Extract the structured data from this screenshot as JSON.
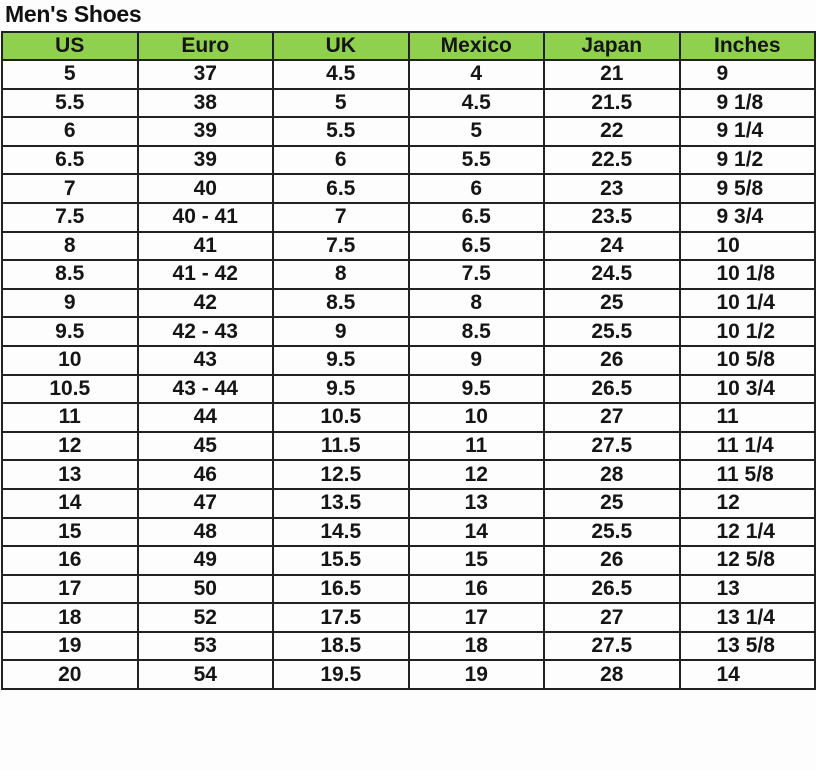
{
  "title": "Men's Shoes",
  "headers": [
    "US",
    "Euro",
    "UK",
    "Mexico",
    "Japan",
    "Inches"
  ],
  "header_color": "#8fd14f",
  "rows": [
    [
      "5",
      "37",
      "4.5",
      "4",
      "21",
      "9"
    ],
    [
      "5.5",
      "38",
      "5",
      "4.5",
      "21.5",
      "9 1/8"
    ],
    [
      "6",
      "39",
      "5.5",
      "5",
      "22",
      "9 1/4"
    ],
    [
      "6.5",
      "39",
      "6",
      "5.5",
      "22.5",
      "9 1/2"
    ],
    [
      "7",
      "40",
      "6.5",
      "6",
      "23",
      "9 5/8"
    ],
    [
      "7.5",
      "40 - 41",
      "7",
      "6.5",
      "23.5",
      "9 3/4"
    ],
    [
      "8",
      "41",
      "7.5",
      "6.5",
      "24",
      "10"
    ],
    [
      "8.5",
      "41 - 42",
      "8",
      "7.5",
      "24.5",
      "10 1/8"
    ],
    [
      "9",
      "42",
      "8.5",
      "8",
      "25",
      "10 1/4"
    ],
    [
      "9.5",
      "42 - 43",
      "9",
      "8.5",
      "25.5",
      "10 1/2"
    ],
    [
      "10",
      "43",
      "9.5",
      "9",
      "26",
      "10 5/8"
    ],
    [
      "10.5",
      "43 - 44",
      "9.5",
      "9.5",
      "26.5",
      "10 3/4"
    ],
    [
      "11",
      "44",
      "10.5",
      "10",
      "27",
      "11"
    ],
    [
      "12",
      "45",
      "11.5",
      "11",
      "27.5",
      "11 1/4"
    ],
    [
      "13",
      "46",
      "12.5",
      "12",
      "28",
      "11 5/8"
    ],
    [
      "14",
      "47",
      "13.5",
      "13",
      "25",
      "12"
    ],
    [
      "15",
      "48",
      "14.5",
      "14",
      "25.5",
      "12 1/4"
    ],
    [
      "16",
      "49",
      "15.5",
      "15",
      "26",
      "12 5/8"
    ],
    [
      "17",
      "50",
      "16.5",
      "16",
      "26.5",
      "13"
    ],
    [
      "18",
      "52",
      "17.5",
      "17",
      "27",
      "13 1/4"
    ],
    [
      "19",
      "53",
      "18.5",
      "18",
      "27.5",
      "13 5/8"
    ],
    [
      "20",
      "54",
      "19.5",
      "19",
      "28",
      "14"
    ]
  ]
}
